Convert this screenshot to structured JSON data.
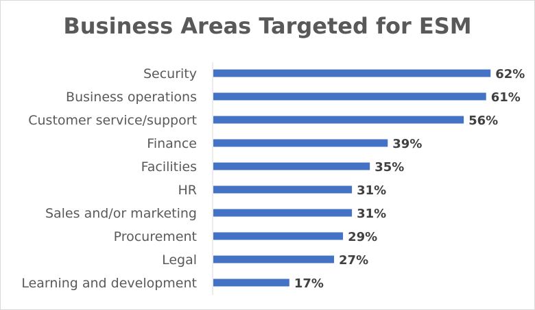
{
  "chart_data": {
    "type": "bar",
    "orientation": "horizontal",
    "title": "Business Areas Targeted for ESM",
    "xlabel": "",
    "ylabel": "",
    "categories": [
      "Security",
      "Business operations",
      "Customer service/support",
      "Finance",
      "Facilities",
      "HR",
      "Sales and/or marketing",
      "Procurement",
      "Legal",
      "Learning and development"
    ],
    "values": [
      62,
      61,
      56,
      39,
      35,
      31,
      31,
      29,
      27,
      17
    ],
    "value_labels": [
      "62%",
      "61%",
      "56%",
      "39%",
      "35%",
      "31%",
      "31%",
      "29%",
      "27%",
      "17%"
    ],
    "xlim": [
      0,
      70
    ],
    "grid": false,
    "legend": "none",
    "bar_color": "#4472c4"
  }
}
